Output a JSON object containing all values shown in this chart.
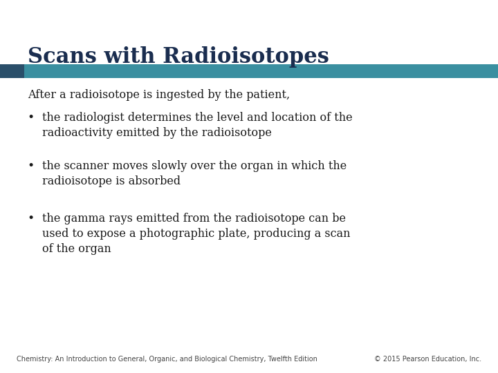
{
  "title": "Scans with Radioisotopes",
  "title_color": "#1a2d4f",
  "title_fontsize": 22,
  "bar_color": "#3a8fa0",
  "bar_left_color": "#2a4f6a",
  "intro_text": "After a radioisotope is ingested by the patient,",
  "bullet_points": [
    "the radiologist determines the level and location of the\nradioactivity emitted by the radioisotope",
    "the scanner moves slowly over the organ in which the\nradioisotope is absorbed",
    "the gamma rays emitted from the radioisotope can be\nused to expose a photographic plate, producing a scan\nof the organ"
  ],
  "footer_left": "Chemistry: An Introduction to General, Organic, and Biological Chemistry, Twelfth Edition",
  "footer_right": "© 2015 Pearson Education, Inc.",
  "background_color": "#ffffff",
  "text_color": "#1a1a1a",
  "bullet_fontsize": 11.5,
  "intro_fontsize": 11.5,
  "footer_fontsize": 7.0
}
